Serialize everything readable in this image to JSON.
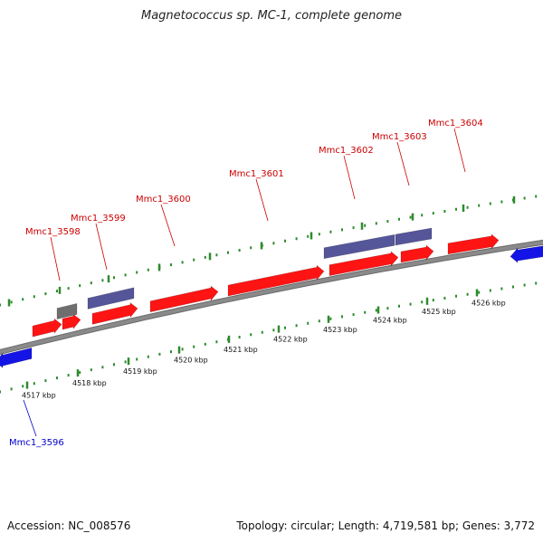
{
  "title": "Magnetococcus sp. MC-1, complete genome",
  "footer": {
    "accession": "Accession: NC_008576",
    "summary": "Topology: circular; Length: 4,719,581 bp; Genes: 3,772"
  },
  "colors": {
    "forward_gene": "#ff1414",
    "reverse_gene": "#1414e6",
    "feature_purple": "#55559a",
    "feature_gray": "#6e6e6e",
    "backbone": "#8a8a8a",
    "tick": "#2e8b2e",
    "label_forward": "#cc0000",
    "label_reverse": "#0000cc"
  },
  "ticks": [
    {
      "label": "4517 kbp"
    },
    {
      "label": "4518 kbp"
    },
    {
      "label": "4519 kbp"
    },
    {
      "label": "4520 kbp"
    },
    {
      "label": "4521 kbp"
    },
    {
      "label": "4522 kbp"
    },
    {
      "label": "4523 kbp"
    },
    {
      "label": "4524 kbp"
    },
    {
      "label": "4525 kbp"
    },
    {
      "label": "4526 kbp"
    }
  ],
  "gene_labels": [
    {
      "name": "Mmc1_3598",
      "strand": "forward"
    },
    {
      "name": "Mmc1_3599",
      "strand": "forward"
    },
    {
      "name": "Mmc1_3600",
      "strand": "forward"
    },
    {
      "name": "Mmc1_3601",
      "strand": "forward"
    },
    {
      "name": "Mmc1_3602",
      "strand": "forward"
    },
    {
      "name": "Mmc1_3603",
      "strand": "forward"
    },
    {
      "name": "Mmc1_3604",
      "strand": "forward"
    },
    {
      "name": "Mmc1_3596",
      "strand": "reverse"
    }
  ]
}
